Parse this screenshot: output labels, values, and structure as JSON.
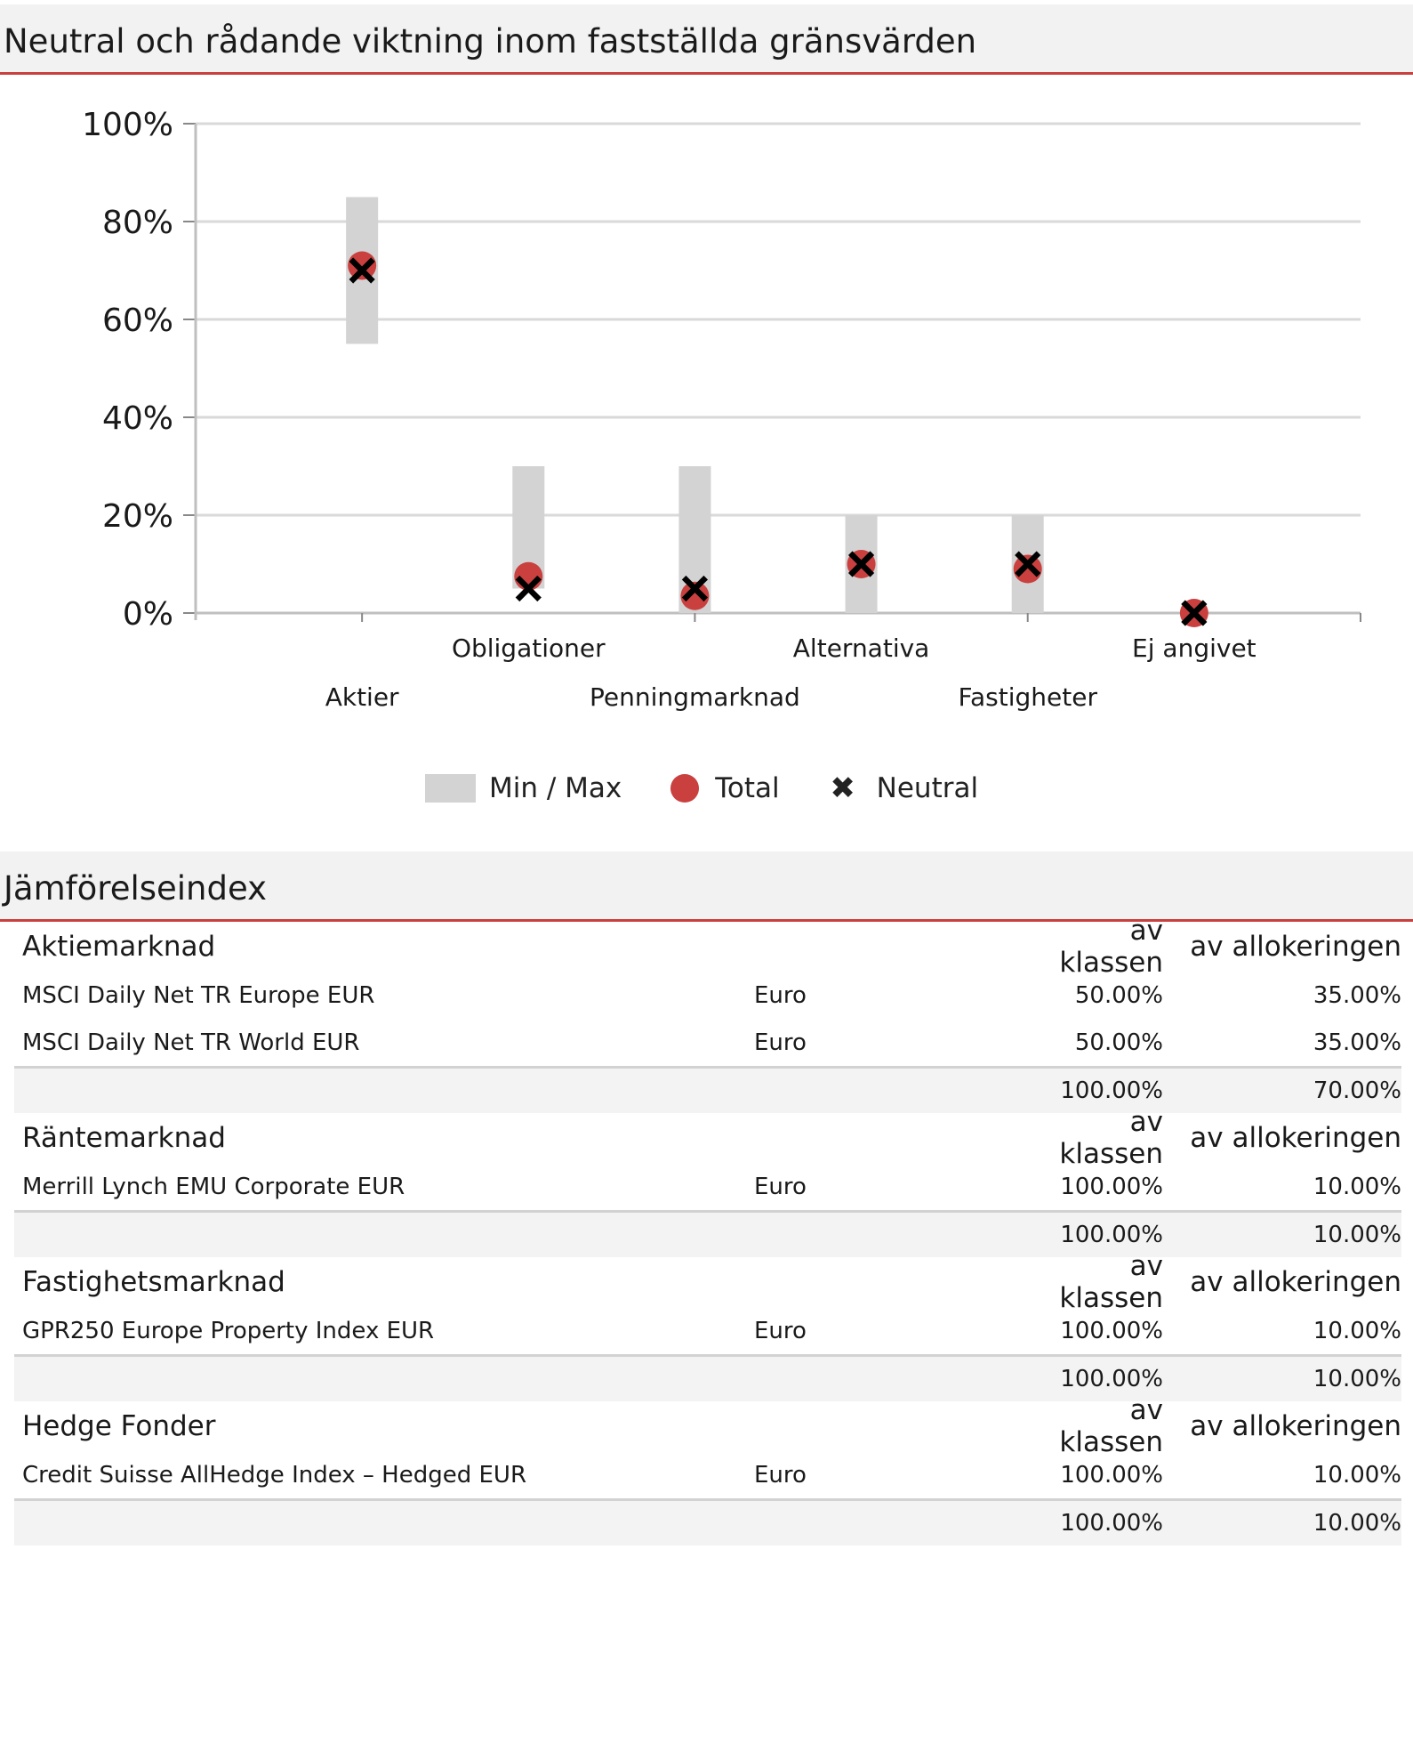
{
  "section1": {
    "title": "Neutral och rådande viktning inom fastställda gränsvärden"
  },
  "colors": {
    "accent": "#c9403f",
    "range": "#d3d3d3",
    "neutral": "#000000",
    "grid": "#d9d9d9"
  },
  "chart_data": {
    "type": "scatter",
    "categories": [
      "Aktier",
      "Obligationer",
      "Penningmarknad",
      "Alternativa",
      "Fastigheter",
      "Ej angivet"
    ],
    "yticks": [
      "0%",
      "20%",
      "40%",
      "60%",
      "80%",
      "100%"
    ],
    "ylim": [
      0,
      100
    ],
    "grid": true,
    "legend_position": "bottom",
    "series": [
      {
        "name": "Min / Max",
        "kind": "range",
        "min": [
          55,
          5,
          0,
          0,
          0,
          null
        ],
        "max": [
          85,
          30,
          30,
          20,
          20,
          null
        ]
      },
      {
        "name": "Total",
        "kind": "point",
        "values": [
          71,
          7.5,
          3.5,
          10,
          9,
          0
        ]
      },
      {
        "name": "Neutral",
        "kind": "marker",
        "values": [
          70,
          5,
          5,
          10,
          10,
          0
        ]
      }
    ],
    "legend": [
      "Min / Max",
      "Total",
      "Neutral"
    ]
  },
  "section2": {
    "title": "Jämförelseindex",
    "groups": [
      {
        "name": "Aktiemarknad",
        "col_k": "av klassen",
        "col_a": "av allokeringen",
        "rows": [
          {
            "name": "MSCI Daily Net TR Europe EUR",
            "currency": "Euro",
            "k": "50.00%",
            "a": "35.00%"
          },
          {
            "name": "MSCI Daily Net TR World EUR",
            "currency": "Euro",
            "k": "50.00%",
            "a": "35.00%"
          }
        ],
        "total": {
          "k": "100.00%",
          "a": "70.00%"
        }
      },
      {
        "name": "Räntemarknad",
        "col_k": "av klassen",
        "col_a": "av allokeringen",
        "rows": [
          {
            "name": "Merrill Lynch EMU Corporate EUR",
            "currency": "Euro",
            "k": "100.00%",
            "a": "10.00%"
          }
        ],
        "total": {
          "k": "100.00%",
          "a": "10.00%"
        }
      },
      {
        "name": "Fastighetsmarknad",
        "col_k": "av klassen",
        "col_a": "av allokeringen",
        "rows": [
          {
            "name": "GPR250 Europe Property Index EUR",
            "currency": "Euro",
            "k": "100.00%",
            "a": "10.00%"
          }
        ],
        "total": {
          "k": "100.00%",
          "a": "10.00%"
        }
      },
      {
        "name": "Hedge Fonder",
        "col_k": "av klassen",
        "col_a": "av allokeringen",
        "rows": [
          {
            "name": "Credit Suisse AllHedge Index – Hedged EUR",
            "currency": "Euro",
            "k": "100.00%",
            "a": "10.00%"
          }
        ],
        "total": {
          "k": "100.00%",
          "a": "10.00%"
        }
      }
    ]
  }
}
